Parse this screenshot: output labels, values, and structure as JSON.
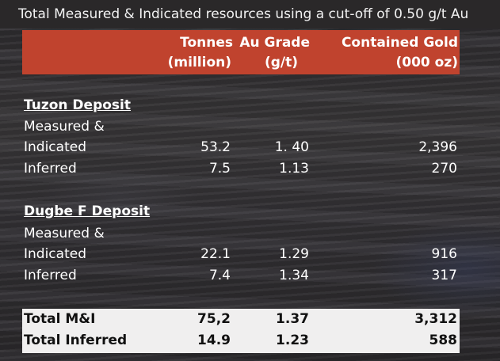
{
  "title": "Total Measured & Indicated resources using a cut-off of 0.50 g/t Au",
  "headers": {
    "tonnes_line1": "Tonnes",
    "tonnes_line2": "(million)",
    "grade_line1": "Au Grade",
    "grade_line2": "(g/t)",
    "gold_line1": "Contained Gold",
    "gold_line2": "(000 oz)"
  },
  "tuzon": {
    "title": "Tuzon Deposit",
    "mi_label_line1": "Measured &",
    "mi_label_line2": "Indicated",
    "mi_tonnes": "53.2",
    "mi_grade": "1. 40",
    "mi_gold": "2,396",
    "inf_label": "Inferred",
    "inf_tonnes": "7.5",
    "inf_grade": "1.13",
    "inf_gold": "270"
  },
  "dugbe": {
    "title": "Dugbe F Deposit",
    "mi_label_line1": "Measured &",
    "mi_label_line2": "Indicated",
    "mi_tonnes": "22.1",
    "mi_grade": "1.29",
    "mi_gold": "916",
    "inf_label": "Inferred",
    "inf_tonnes": "7.4",
    "inf_grade": "1.34",
    "inf_gold": "317"
  },
  "totals": {
    "mi_label": "Total M&I",
    "mi_tonnes": "75,2",
    "mi_grade": "1.37",
    "mi_gold": "3,312",
    "inf_label": "Total Inferred",
    "inf_tonnes": "14.9",
    "inf_grade": "1.23",
    "inf_gold": "588"
  },
  "colors": {
    "header_band": "#c0432e",
    "totals_band": "#f0efef"
  }
}
